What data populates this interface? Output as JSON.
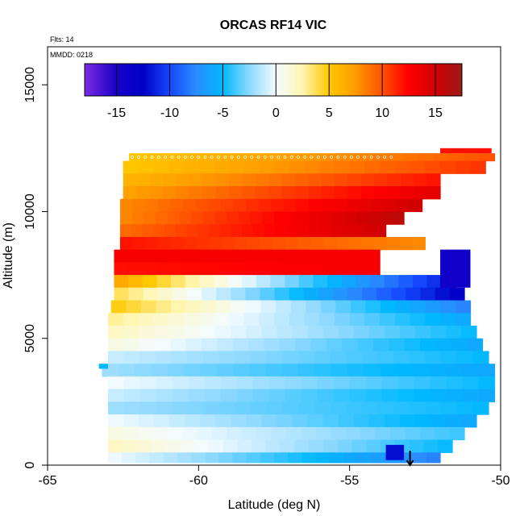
{
  "chart_data": {
    "type": "heatmap",
    "title": "ORCAS RF14 VIC",
    "xlabel": "Latitude (deg N)",
    "ylabel": "Altitude (m)",
    "xlim": [
      -65,
      -50
    ],
    "ylim": [
      0,
      16500
    ],
    "x_ticks": [
      -65,
      -60,
      -55,
      -50
    ],
    "y_ticks": [
      0,
      5000,
      10000,
      15000
    ],
    "annotations": {
      "flights": "Flts: 14",
      "date": "MMDD: 0218"
    },
    "colorbar": {
      "range": [
        -18,
        17.5
      ],
      "ticks": [
        -15,
        -10,
        -5,
        0,
        5,
        10,
        15
      ],
      "stops": [
        {
          "v": -18,
          "color": "#7b2be0"
        },
        {
          "v": -15,
          "color": "#1a00c8"
        },
        {
          "v": -12.5,
          "color": "#0000c8"
        },
        {
          "v": -10,
          "color": "#1448ff"
        },
        {
          "v": -7.5,
          "color": "#2b8cff"
        },
        {
          "v": -5,
          "color": "#00b8ff"
        },
        {
          "v": -2.5,
          "color": "#8cd8ff"
        },
        {
          "v": 0,
          "color": "#f4fbff"
        },
        {
          "v": 2.5,
          "color": "#fff6b0"
        },
        {
          "v": 5,
          "color": "#ffc800"
        },
        {
          "v": 7.5,
          "color": "#ff9a00"
        },
        {
          "v": 10,
          "color": "#ff5000"
        },
        {
          "v": 12.5,
          "color": "#ff0000"
        },
        {
          "v": 15,
          "color": "#d00000"
        },
        {
          "v": 17.5,
          "color": "#9c1a1a"
        }
      ]
    },
    "layers": [
      {
        "alt": [
          12000,
          12300
        ],
        "lat": [
          -62.3,
          -50.2
        ],
        "v0": 5,
        "v1": 10
      },
      {
        "alt": [
          11500,
          12000
        ],
        "lat": [
          -62.5,
          -50.5
        ],
        "v0": 5,
        "v1": 11
      },
      {
        "alt": [
          11000,
          11500
        ],
        "lat": [
          -62.5,
          -52.0
        ],
        "v0": 6,
        "v1": 12
      },
      {
        "alt": [
          10500,
          11000
        ],
        "lat": [
          -62.5,
          -52.0
        ],
        "v0": 7,
        "v1": 14
      },
      {
        "alt": [
          10000,
          10500
        ],
        "lat": [
          -62.6,
          -52.6
        ],
        "v0": 8,
        "v1": 15
      },
      {
        "alt": [
          9500,
          10000
        ],
        "lat": [
          -62.6,
          -53.2
        ],
        "v0": 8,
        "v1": 16
      },
      {
        "alt": [
          9000,
          9500
        ],
        "lat": [
          -62.6,
          -53.8
        ],
        "v0": 9,
        "v1": 15
      },
      {
        "alt": [
          8500,
          9000
        ],
        "lat": [
          -62.6,
          -52.5
        ],
        "v0": 12,
        "v1": 8
      },
      {
        "alt": [
          8000,
          8500
        ],
        "lat": [
          -62.8,
          -54.0
        ],
        "v0": 13,
        "v1": 13
      },
      {
        "alt": [
          7500,
          8000
        ],
        "lat": [
          -62.8,
          -54.0
        ],
        "v0": 12,
        "v1": 13
      },
      {
        "alt": [
          7000,
          7500
        ],
        "lat": [
          -62.8,
          -51.5
        ],
        "v0": 7,
        "v1": -12
      },
      {
        "alt": [
          6500,
          7000
        ],
        "lat": [
          -62.8,
          -51.2
        ],
        "v0": 4,
        "v1": -13
      },
      {
        "alt": [
          6000,
          6500
        ],
        "lat": [
          -62.9,
          -51.0
        ],
        "v0": 5,
        "v1": -8
      },
      {
        "alt": [
          5500,
          6000
        ],
        "lat": [
          -63.0,
          -51.0
        ],
        "v0": 3,
        "v1": -6
      },
      {
        "alt": [
          5000,
          5500
        ],
        "lat": [
          -63.0,
          -50.8
        ],
        "v0": 2,
        "v1": -5
      },
      {
        "alt": [
          4500,
          5000
        ],
        "lat": [
          -63.0,
          -50.6
        ],
        "v0": 1,
        "v1": -6
      },
      {
        "alt": [
          4000,
          4500
        ],
        "lat": [
          -63.0,
          -50.4
        ],
        "v0": -1,
        "v1": -5
      },
      {
        "alt": [
          3500,
          4000
        ],
        "lat": [
          -63.2,
          -50.2
        ],
        "v0": -2,
        "v1": -6
      },
      {
        "alt": [
          3000,
          3500
        ],
        "lat": [
          -63.0,
          -50.2
        ],
        "v0": 0,
        "v1": -5
      },
      {
        "alt": [
          2500,
          3000
        ],
        "lat": [
          -63.0,
          -50.2
        ],
        "v0": -1,
        "v1": -6
      },
      {
        "alt": [
          2000,
          2500
        ],
        "lat": [
          -63.0,
          -50.4
        ],
        "v0": -2,
        "v1": -5
      },
      {
        "alt": [
          1500,
          2000
        ],
        "lat": [
          -63.0,
          -50.8
        ],
        "v0": 0,
        "v1": -6
      },
      {
        "alt": [
          1000,
          1500
        ],
        "lat": [
          -63.0,
          -51.2
        ],
        "v0": 1,
        "v1": -4
      },
      {
        "alt": [
          500,
          1000
        ],
        "lat": [
          -63.0,
          -51.6
        ],
        "v0": 2,
        "v1": -5
      },
      {
        "alt": [
          100,
          500
        ],
        "lat": [
          -63.0,
          -52.0
        ],
        "v0": 0,
        "v1": -8
      }
    ],
    "features": [
      {
        "alt": [
          7000,
          8500
        ],
        "lat": [
          -52.0,
          -51.0
        ],
        "value": -14
      },
      {
        "alt": [
          12300,
          12500
        ],
        "lat": [
          -52.0,
          -50.3
        ],
        "value": 12
      },
      {
        "alt": [
          200,
          800
        ],
        "lat": [
          -53.8,
          -53.2
        ],
        "value": -12
      },
      {
        "alt": [
          3800,
          4000
        ],
        "lat": [
          -63.3,
          -63.0
        ],
        "value": -5
      }
    ],
    "flight_marker": {
      "lat": -53.0,
      "alt": 0
    }
  }
}
